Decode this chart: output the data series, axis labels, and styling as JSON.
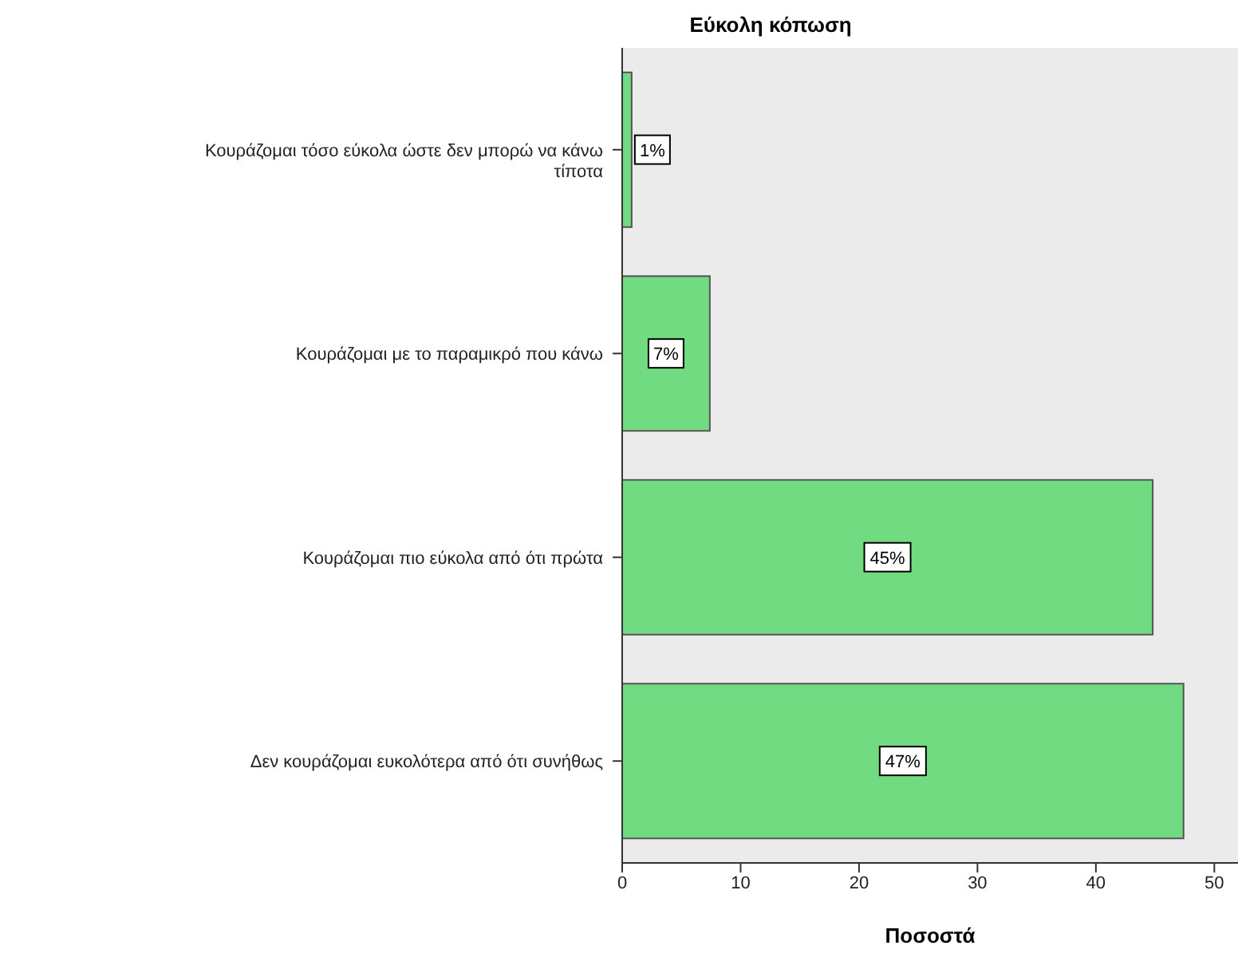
{
  "chart_data": {
    "type": "bar",
    "orientation": "horizontal",
    "title": "Εύκολη κόπωση",
    "xlabel": "Ποσοστά",
    "categories": [
      "Κουράζομαι τόσο εύκολα ώστε δεν μπορώ να κάνω τίποτα",
      "Κουράζομαι με το παραμικρό που κάνω",
      "Κουράζομαι πιο εύκολα από ότι πρώτα",
      "Δεν κουράζομαι ευκολότερα από ότι συνήθως"
    ],
    "values": [
      0.8,
      7.4,
      44.8,
      47.4
    ],
    "value_labels": [
      "1%",
      "7%",
      "45%",
      "47%"
    ],
    "color": "#70db80",
    "xlim": [
      0,
      52
    ],
    "xticks": [
      0,
      10,
      20,
      30,
      40,
      50
    ],
    "grid": false
  }
}
